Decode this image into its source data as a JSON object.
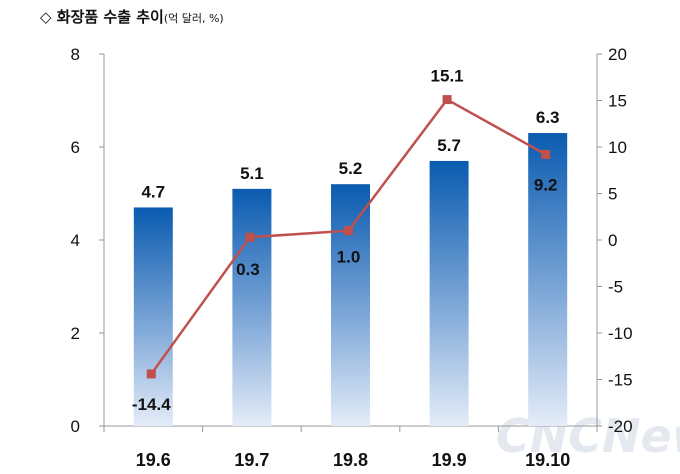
{
  "header": {
    "marker": "◇",
    "title": "화장품 수출 추이",
    "unit": "(억 달러, %)"
  },
  "watermark": "CNCNews",
  "chart_data": {
    "type": "bar",
    "title": "화장품 수출 추이",
    "unit_note": "(억 달러, %)",
    "categories": [
      "19.6",
      "19.7",
      "19.8",
      "19.9",
      "19.10"
    ],
    "series": [
      {
        "type": "bar",
        "axis": "left",
        "values": [
          4.7,
          5.1,
          5.2,
          5.7,
          6.3
        ],
        "labels": [
          "4.7",
          "5.1",
          "5.2",
          "5.7",
          "6.3"
        ],
        "color": "#0a5bb0"
      },
      {
        "type": "line",
        "axis": "right",
        "values": [
          -14.4,
          0.3,
          1.0,
          15.1,
          9.2
        ],
        "labels": [
          "-14.4",
          "0.3",
          "1.0",
          "15.1",
          "9.2"
        ],
        "color": "#c0504d"
      }
    ],
    "ylim_left": [
      0,
      8
    ],
    "yticks_left": [
      "0",
      "2",
      "4",
      "6",
      "8"
    ],
    "ylim_right": [
      -20,
      20
    ],
    "yticks_right": [
      "-20",
      "-15",
      "-10",
      "-5",
      "0",
      "5",
      "10",
      "15",
      "20"
    ],
    "grid": false,
    "legend": "none"
  }
}
